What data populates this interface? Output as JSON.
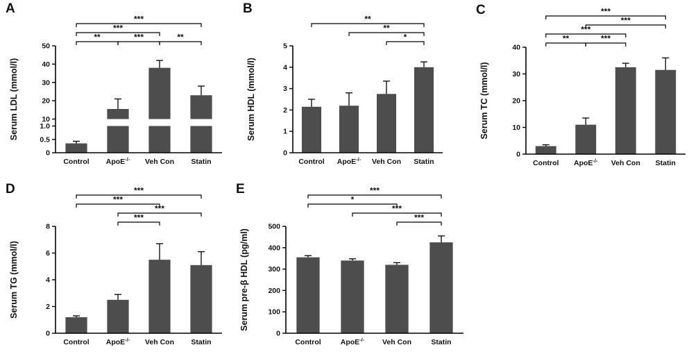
{
  "figure": {
    "background": "#ffffff",
    "bar_color": "#4d4d4d",
    "axis_color": "#000000",
    "error_bar_color": "#000000"
  },
  "chart_data": [
    {
      "panel_label": "A",
      "type": "bar",
      "ylabel": "Serum LDL (mmol/l)",
      "categories": [
        "Control",
        "ApoE-/-",
        "Veh Con",
        "Statin"
      ],
      "values": [
        0.35,
        15.5,
        38,
        23
      ],
      "errors": [
        0.08,
        5.5,
        4,
        5
      ],
      "ylim": [
        0,
        50
      ],
      "axis_break": {
        "lower_max": 1.0,
        "upper_min": 10,
        "upper_max": 50
      },
      "yticks": [
        {
          "value": 0,
          "label": "0"
        },
        {
          "value": 0.5,
          "label": "0.5"
        },
        {
          "value": 1.0,
          "label": "1.0"
        },
        {
          "value": 10,
          "label": "10"
        },
        {
          "value": 20,
          "label": "20"
        },
        {
          "value": 30,
          "label": "30"
        },
        {
          "value": 40,
          "label": "40"
        },
        {
          "value": 50,
          "label": "50"
        }
      ],
      "significance": [
        {
          "from": 0,
          "to": 1,
          "label": "**",
          "level": 0
        },
        {
          "from": 1,
          "to": 2,
          "label": "***",
          "level": 0
        },
        {
          "from": 2,
          "to": 3,
          "label": "**",
          "level": 0
        },
        {
          "from": 0,
          "to": 2,
          "label": "***",
          "level": 1
        },
        {
          "from": 0,
          "to": 3,
          "label": "***",
          "level": 2
        }
      ]
    },
    {
      "panel_label": "B",
      "type": "bar",
      "ylabel": "Serum HDL (mmol/l)",
      "categories": [
        "Control",
        "ApoE-/-",
        "Veh Con",
        "Statin"
      ],
      "values": [
        2.15,
        2.2,
        2.75,
        4.0
      ],
      "errors": [
        0.35,
        0.6,
        0.6,
        0.25
      ],
      "ylim": [
        0,
        5
      ],
      "yticks": [
        {
          "value": 0,
          "label": "0"
        },
        {
          "value": 1,
          "label": "1"
        },
        {
          "value": 2,
          "label": "2"
        },
        {
          "value": 3,
          "label": "3"
        },
        {
          "value": 4,
          "label": "4"
        },
        {
          "value": 5,
          "label": "5"
        }
      ],
      "significance": [
        {
          "from": 2,
          "to": 3,
          "label": "*",
          "level": 0
        },
        {
          "from": 1,
          "to": 3,
          "label": "**",
          "level": 1
        },
        {
          "from": 0,
          "to": 3,
          "label": "**",
          "level": 2
        }
      ]
    },
    {
      "panel_label": "C",
      "type": "bar",
      "ylabel": "Serum TC (mmol/l)",
      "categories": [
        "Control",
        "ApoE-/-",
        "Veh Con",
        "Statin"
      ],
      "values": [
        3,
        11,
        32.5,
        31.5
      ],
      "errors": [
        0.5,
        2.5,
        1.5,
        4.5
      ],
      "ylim": [
        0,
        40
      ],
      "yticks": [
        {
          "value": 0,
          "label": "0"
        },
        {
          "value": 10,
          "label": "10"
        },
        {
          "value": 20,
          "label": "20"
        },
        {
          "value": 30,
          "label": "30"
        },
        {
          "value": 40,
          "label": "40"
        }
      ],
      "significance": [
        {
          "from": 0,
          "to": 1,
          "label": "**",
          "level": 0
        },
        {
          "from": 1,
          "to": 2,
          "label": "***",
          "level": 0
        },
        {
          "from": 0,
          "to": 2,
          "label": "***",
          "level": 1
        },
        {
          "from": 1,
          "to": 3,
          "label": "***",
          "level": 2
        },
        {
          "from": 0,
          "to": 3,
          "label": "***",
          "level": 3
        }
      ]
    },
    {
      "panel_label": "D",
      "type": "bar",
      "ylabel": "Serum TG (mmol/l)",
      "categories": [
        "Control",
        "ApoE-/-",
        "Veh Con",
        "Statin"
      ],
      "values": [
        1.2,
        2.5,
        5.5,
        5.1
      ],
      "errors": [
        0.1,
        0.4,
        1.2,
        1.0
      ],
      "ylim": [
        0,
        8
      ],
      "yticks": [
        {
          "value": 0,
          "label": "0"
        },
        {
          "value": 2,
          "label": "2"
        },
        {
          "value": 4,
          "label": "4"
        },
        {
          "value": 6,
          "label": "6"
        },
        {
          "value": 8,
          "label": "8"
        }
      ],
      "significance": [
        {
          "from": 1,
          "to": 2,
          "label": "***",
          "level": 0
        },
        {
          "from": 1,
          "to": 3,
          "label": "***",
          "level": 1
        },
        {
          "from": 0,
          "to": 2,
          "label": "***",
          "level": 2
        },
        {
          "from": 0,
          "to": 3,
          "label": "***",
          "level": 3
        }
      ]
    },
    {
      "panel_label": "E",
      "type": "bar",
      "ylabel": "Serum pre-β HDL (pg/ml)",
      "categories": [
        "Control",
        "ApoE-/-",
        "Veh Con",
        "Statin"
      ],
      "values": [
        355,
        340,
        320,
        425
      ],
      "errors": [
        8,
        8,
        10,
        30
      ],
      "ylim": [
        0,
        500
      ],
      "yticks": [
        {
          "value": 0,
          "label": "0"
        },
        {
          "value": 100,
          "label": "100"
        },
        {
          "value": 200,
          "label": "200"
        },
        {
          "value": 300,
          "label": "300"
        },
        {
          "value": 400,
          "label": "400"
        },
        {
          "value": 500,
          "label": "500"
        }
      ],
      "significance": [
        {
          "from": 2,
          "to": 3,
          "label": "***",
          "level": 0
        },
        {
          "from": 1,
          "to": 3,
          "label": "***",
          "level": 1
        },
        {
          "from": 0,
          "to": 2,
          "label": "*",
          "level": 2
        },
        {
          "from": 0,
          "to": 3,
          "label": "***",
          "level": 3
        }
      ]
    }
  ]
}
